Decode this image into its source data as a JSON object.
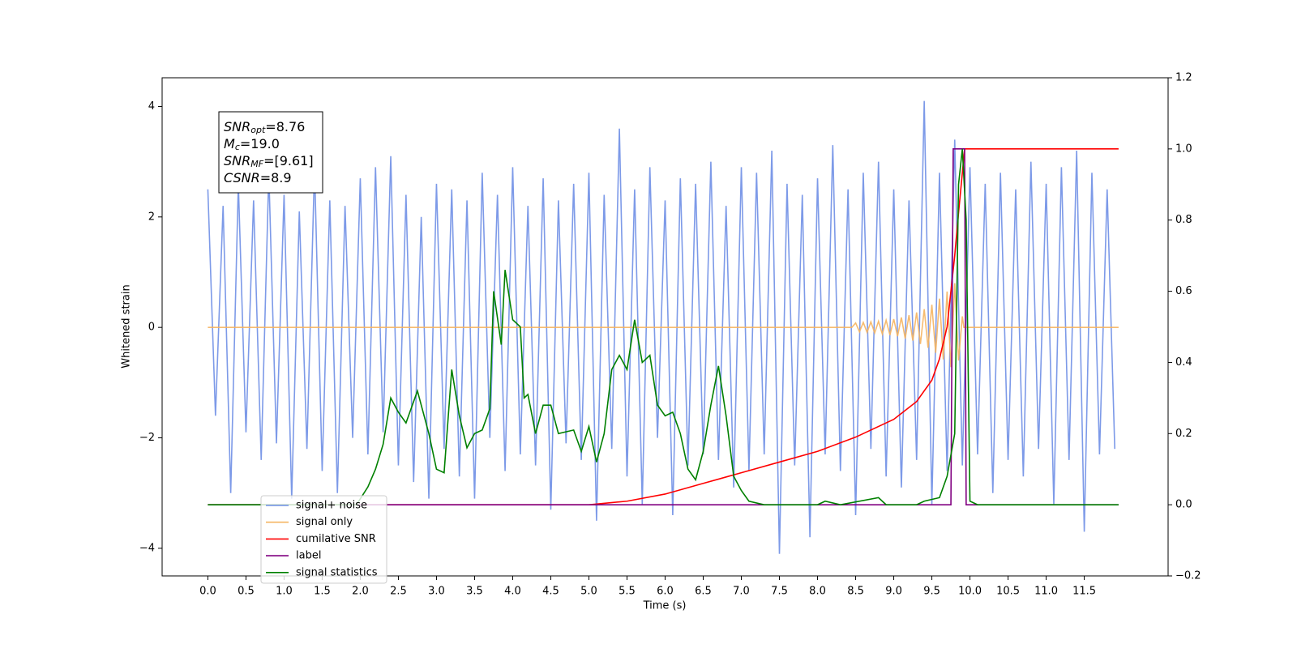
{
  "chart_data": {
    "type": "line",
    "xlabel": "Time (s)",
    "ylabel": "Whitened strain",
    "xlim": [
      -0.6,
      12.6
    ],
    "ylim": [
      -4.5,
      4.52
    ],
    "y2lim": [
      -0.2,
      1.2
    ],
    "xticks": [
      {
        "value": 0,
        "label": "0.0"
      },
      0.5,
      {
        "value": 1,
        "label": "1.0"
      },
      1.5,
      {
        "value": 2,
        "label": "2.0"
      },
      2.5,
      {
        "value": 3,
        "label": "3.0"
      },
      3.5,
      {
        "value": 4,
        "label": "4.0"
      },
      4.5,
      {
        "value": 5,
        "label": "5.0"
      },
      5.5,
      {
        "value": 6,
        "label": "6.0"
      },
      6.5,
      {
        "value": 7,
        "label": "7.0"
      },
      7.5,
      {
        "value": 8,
        "label": "8.0"
      },
      8.5,
      {
        "value": 9,
        "label": "9.0"
      },
      9.5,
      {
        "value": 10,
        "label": "10.0"
      },
      10.5,
      {
        "value": 11,
        "label": "11.0"
      },
      11.5
    ],
    "yticks": [
      {
        "value": -4,
        "label": "−4"
      },
      {
        "value": -2,
        "label": "−2"
      },
      0,
      2,
      4
    ],
    "y2ticks": [
      {
        "value": -0.2,
        "label": "−0.2"
      },
      {
        "value": 0,
        "label": "0.0"
      },
      0.2,
      0.4,
      0.6,
      0.8,
      {
        "value": 1,
        "label": "1.0"
      },
      1.2
    ],
    "legend": "lower left",
    "annotation": [
      {
        "main": "SNR",
        "sub": "opt",
        "rest": "=8.76"
      },
      {
        "main": "M",
        "sub": "c",
        "rest": "=19.0"
      },
      {
        "main": "SNR",
        "sub": "MF",
        "rest": "=[9.61]"
      },
      {
        "main": "CSNR",
        "sub": "",
        "rest": "=8.9"
      }
    ],
    "series": [
      {
        "name": "signal+ noise",
        "color": "#6f8fe6",
        "x": [
          0.0,
          0.1,
          0.2,
          0.3,
          0.4,
          0.5,
          0.6,
          0.7,
          0.8,
          0.9,
          1.0,
          1.1,
          1.2,
          1.3,
          1.4,
          1.5,
          1.6,
          1.7,
          1.8,
          1.9,
          2.0,
          2.1,
          2.2,
          2.3,
          2.4,
          2.5,
          2.6,
          2.7,
          2.8,
          2.9,
          3.0,
          3.1,
          3.2,
          3.3,
          3.4,
          3.5,
          3.6,
          3.7,
          3.8,
          3.9,
          4.0,
          4.1,
          4.2,
          4.3,
          4.4,
          4.5,
          4.6,
          4.7,
          4.8,
          4.9,
          5.0,
          5.1,
          5.2,
          5.3,
          5.4,
          5.5,
          5.6,
          5.7,
          5.8,
          5.9,
          6.0,
          6.1,
          6.2,
          6.3,
          6.4,
          6.5,
          6.6,
          6.7,
          6.8,
          6.9,
          7.0,
          7.1,
          7.2,
          7.3,
          7.4,
          7.5,
          7.6,
          7.7,
          7.8,
          7.9,
          8.0,
          8.1,
          8.2,
          8.3,
          8.4,
          8.5,
          8.6,
          8.7,
          8.8,
          8.9,
          9.0,
          9.1,
          9.2,
          9.3,
          9.4,
          9.5,
          9.6,
          9.7,
          9.8,
          9.9,
          10.0,
          10.1,
          10.2,
          10.3,
          10.4,
          10.5,
          10.6,
          10.7,
          10.8,
          10.9,
          11.0,
          11.1,
          11.2,
          11.3,
          11.4,
          11.5,
          11.6,
          11.7,
          11.8,
          11.9
        ],
        "values": [
          2.5,
          -1.6,
          2.2,
          -3.0,
          2.6,
          -1.9,
          2.3,
          -2.4,
          2.8,
          -2.1,
          2.4,
          -3.1,
          2.1,
          -2.2,
          2.9,
          -2.6,
          2.3,
          -3.0,
          2.2,
          -2.0,
          2.7,
          -2.3,
          2.9,
          -1.9,
          3.1,
          -2.5,
          2.4,
          -2.8,
          2.0,
          -3.1,
          2.6,
          -2.2,
          2.5,
          -2.7,
          2.3,
          -3.1,
          2.8,
          -2.0,
          2.4,
          -2.6,
          2.9,
          -2.3,
          2.2,
          -2.5,
          2.7,
          -3.3,
          2.3,
          -2.1,
          2.6,
          -2.4,
          2.8,
          -3.5,
          2.4,
          -2.2,
          3.6,
          -2.7,
          2.5,
          -3.2,
          2.9,
          -2.0,
          2.3,
          -3.4,
          2.7,
          -2.5,
          2.6,
          -2.3,
          3.0,
          -2.4,
          2.2,
          -2.9,
          2.9,
          -2.6,
          2.8,
          -2.3,
          3.2,
          -4.1,
          2.6,
          -2.5,
          2.4,
          -3.8,
          2.7,
          -2.3,
          3.3,
          -2.6,
          2.5,
          -3.4,
          2.8,
          -2.2,
          3.0,
          -2.7,
          2.5,
          -2.9,
          2.3,
          -2.4,
          4.1,
          -3.2,
          2.8,
          -2.6,
          3.4,
          -2.5,
          2.9,
          -2.3,
          2.6,
          -3.0,
          2.8,
          -2.4,
          2.5,
          -2.7,
          3.0,
          -2.2,
          2.6,
          -3.2,
          2.9,
          -2.4,
          3.2,
          -3.7,
          2.8,
          -2.3,
          2.5,
          -2.2
        ]
      },
      {
        "name": "signal only",
        "color": "#f5b461",
        "x": [
          0,
          8.45,
          8.5,
          8.55,
          8.6,
          8.65,
          8.7,
          8.75,
          8.8,
          8.85,
          8.9,
          8.95,
          9.0,
          9.05,
          9.1,
          9.15,
          9.2,
          9.25,
          9.3,
          9.35,
          9.4,
          9.45,
          9.5,
          9.55,
          9.6,
          9.65,
          9.7,
          9.75,
          9.8,
          9.85,
          9.9,
          9.92,
          11.95
        ],
        "values": [
          0,
          0,
          0.08,
          -0.08,
          0.09,
          -0.09,
          0.1,
          -0.1,
          0.11,
          -0.12,
          0.13,
          -0.14,
          0.15,
          -0.16,
          0.18,
          -0.2,
          0.22,
          -0.24,
          0.27,
          -0.3,
          0.33,
          -0.37,
          0.41,
          -0.46,
          0.52,
          -0.58,
          0.65,
          -0.72,
          0.8,
          -0.6,
          0.2,
          0,
          0
        ]
      },
      {
        "name": "cumilative SNR",
        "color": "#ff0000",
        "axis": "y2",
        "x": [
          0,
          5.0,
          5.5,
          6.0,
          6.5,
          7.0,
          7.5,
          8.0,
          8.5,
          9.0,
          9.3,
          9.5,
          9.6,
          9.7,
          9.8,
          9.85,
          9.93,
          11.95
        ],
        "values": [
          0,
          0,
          0.01,
          0.03,
          0.06,
          0.09,
          0.12,
          0.15,
          0.19,
          0.24,
          0.29,
          0.35,
          0.41,
          0.5,
          0.7,
          0.82,
          1.0,
          1.0
        ]
      },
      {
        "name": "label",
        "color": "#800080",
        "axis": "y2",
        "x": [
          0,
          9.75,
          9.78,
          9.93,
          9.95,
          11.95
        ],
        "values": [
          0,
          0,
          1,
          1,
          0,
          0
        ]
      },
      {
        "name": "signal statistics",
        "color": "#008000",
        "axis": "y2",
        "x": [
          0,
          1.95,
          2.1,
          2.2,
          2.3,
          2.4,
          2.5,
          2.6,
          2.75,
          2.9,
          3.0,
          3.1,
          3.2,
          3.3,
          3.4,
          3.5,
          3.6,
          3.7,
          3.75,
          3.85,
          3.9,
          4.0,
          4.1,
          4.15,
          4.2,
          4.3,
          4.4,
          4.5,
          4.6,
          4.8,
          4.9,
          5.0,
          5.1,
          5.2,
          5.3,
          5.4,
          5.5,
          5.6,
          5.7,
          5.8,
          5.9,
          6.0,
          6.1,
          6.2,
          6.3,
          6.4,
          6.5,
          6.6,
          6.7,
          6.8,
          6.9,
          7.0,
          7.1,
          7.3,
          8.0,
          8.1,
          8.3,
          8.8,
          8.9,
          9.3,
          9.4,
          9.6,
          9.7,
          9.8,
          9.85,
          9.9,
          9.95,
          10.0,
          10.1,
          11.95
        ],
        "values": [
          0,
          0,
          0.05,
          0.1,
          0.17,
          0.3,
          0.26,
          0.23,
          0.32,
          0.2,
          0.1,
          0.09,
          0.38,
          0.25,
          0.16,
          0.2,
          0.21,
          0.27,
          0.6,
          0.45,
          0.66,
          0.52,
          0.5,
          0.3,
          0.31,
          0.2,
          0.28,
          0.28,
          0.2,
          0.21,
          0.15,
          0.22,
          0.12,
          0.2,
          0.38,
          0.42,
          0.38,
          0.52,
          0.4,
          0.42,
          0.28,
          0.25,
          0.26,
          0.2,
          0.1,
          0.07,
          0.15,
          0.28,
          0.39,
          0.25,
          0.08,
          0.04,
          0.01,
          0,
          0,
          0.01,
          0,
          0.02,
          0,
          0,
          0.01,
          0.02,
          0.08,
          0.2,
          0.9,
          1.0,
          0.8,
          0.01,
          0,
          0
        ]
      }
    ]
  }
}
